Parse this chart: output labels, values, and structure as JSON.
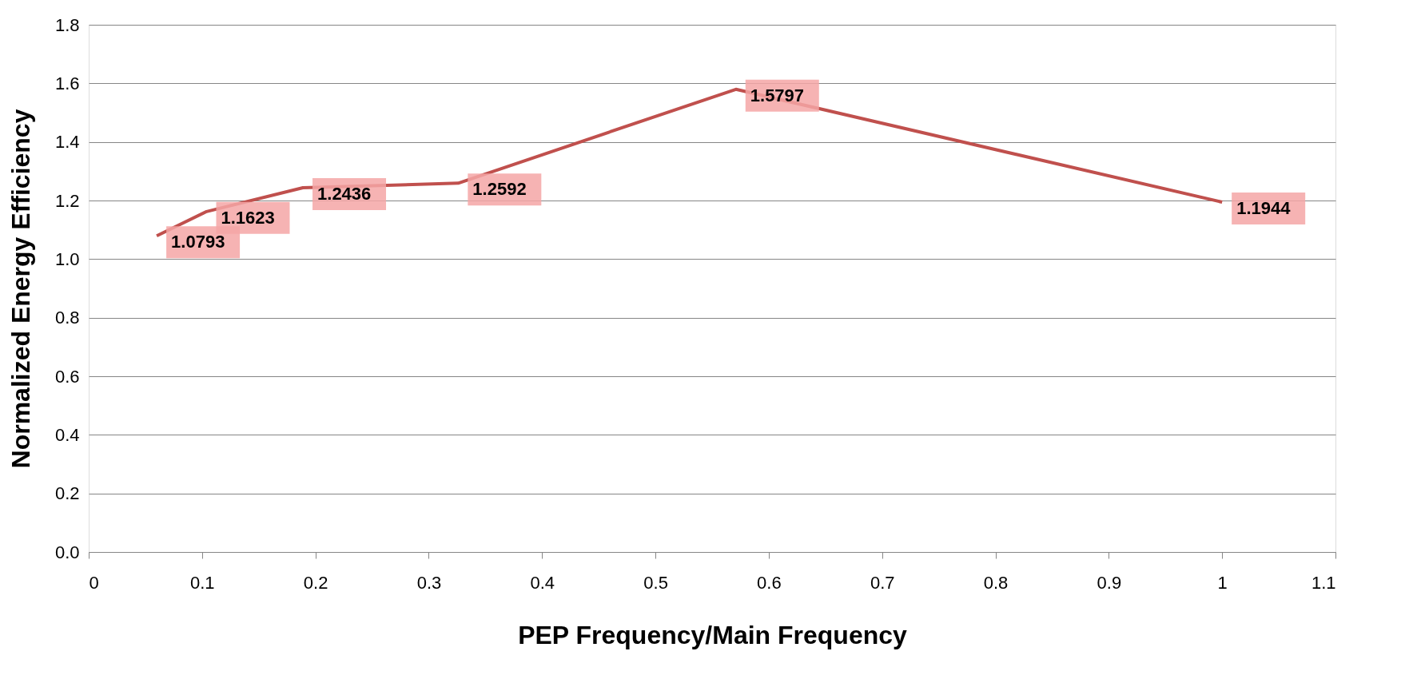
{
  "chart_data": {
    "type": "line",
    "xlabel": "PEP Frequency/Main Frequency",
    "ylabel": "Normalized Energy Efficiency",
    "x": [
      0.06,
      0.104,
      0.189,
      0.326,
      0.571,
      1.0
    ],
    "series": [
      {
        "color": "#c0504d",
        "values": [
          1.0793,
          1.1623,
          1.2436,
          1.2592,
          1.5797,
          1.1944
        ]
      }
    ],
    "xlim": [
      0,
      1.1
    ],
    "xticks": [
      0,
      0.1,
      0.2,
      0.3,
      0.4,
      0.5,
      0.6,
      0.7,
      0.8,
      0.9,
      1,
      1.1
    ],
    "ylim": [
      0,
      1.8
    ],
    "yticks": [
      {
        "value": 0,
        "label": "0.0"
      },
      0.2,
      0.4,
      0.6,
      0.8,
      {
        "value": 1,
        "label": "1.0"
      },
      1.2,
      1.4,
      1.6,
      1.8
    ],
    "grid": "y",
    "data_labels": true,
    "marker": "none",
    "line_style": "solid"
  }
}
